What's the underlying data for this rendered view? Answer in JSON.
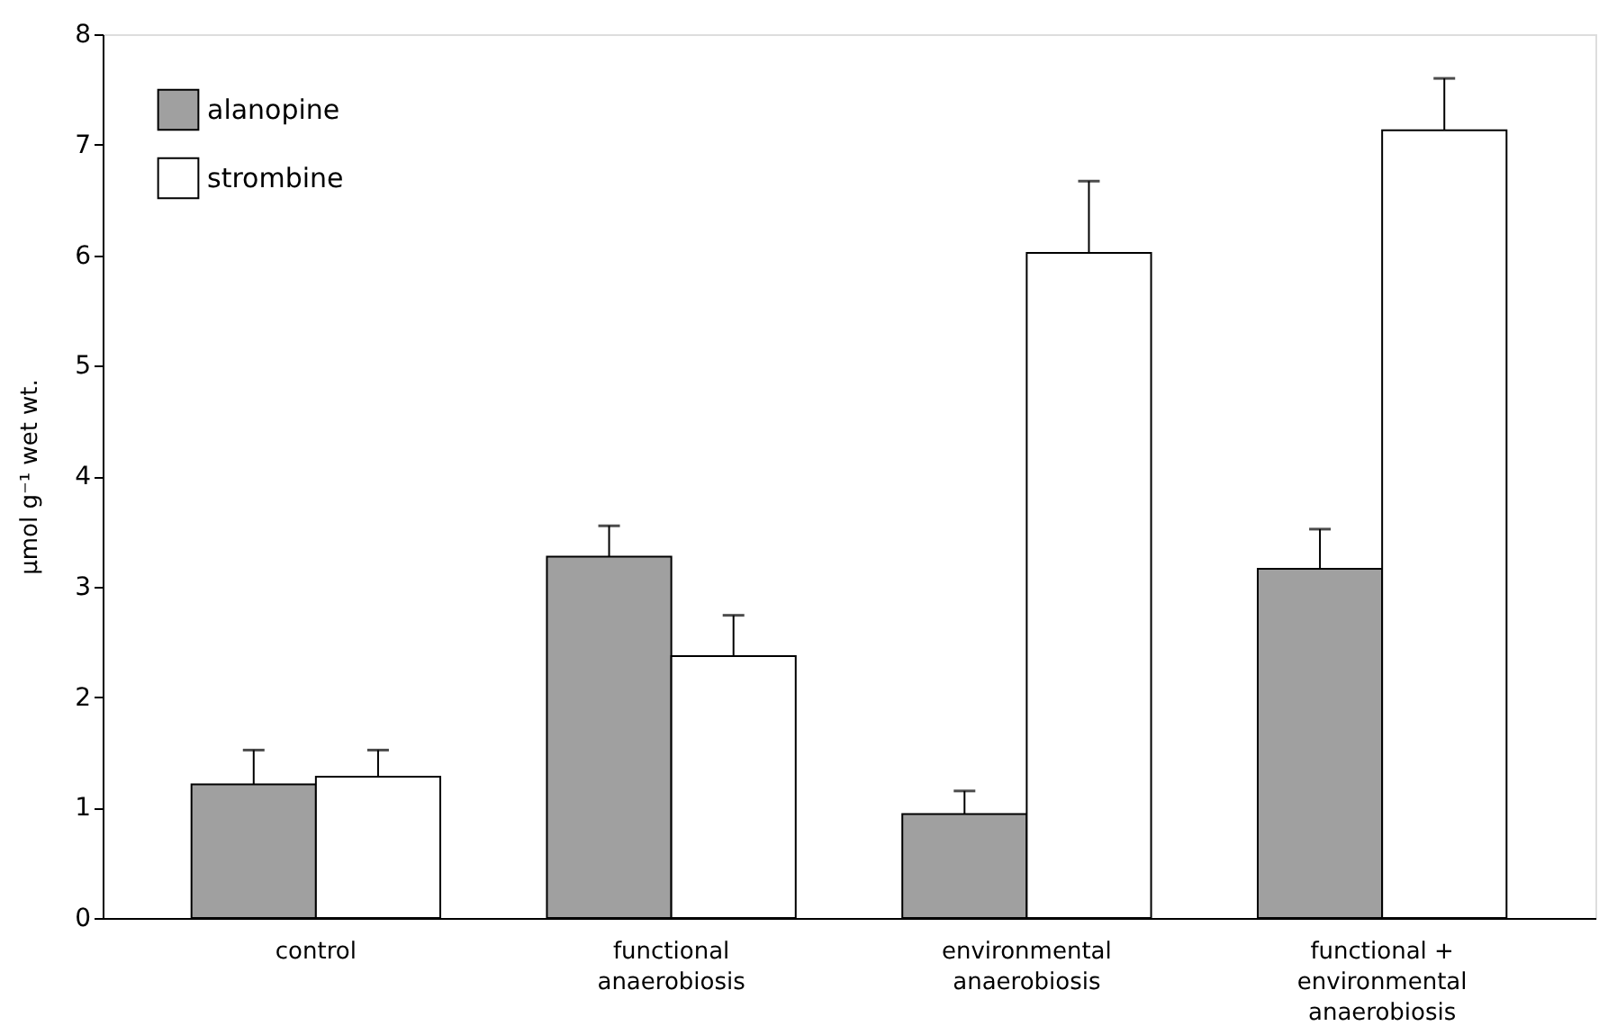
{
  "chart_data": {
    "type": "bar",
    "categories": [
      "control",
      "functional\nanaerobiosis",
      "environmental\nanaerobiosis",
      "functional +\nenvironmental\nanaerobiosis"
    ],
    "ylabel": "μmol g⁻¹ wet wt.",
    "series": [
      {
        "name": "alanopine",
        "color": "#a0a0a0",
        "values": [
          1.21,
          3.27,
          0.94,
          3.16
        ],
        "errors": [
          [
            1.21,
            1.52
          ],
          [
            3.27,
            3.55
          ],
          [
            0.94,
            1.15
          ],
          [
            3.16,
            3.52
          ]
        ]
      },
      {
        "name": "strombine",
        "color": "#ffffff",
        "values": [
          1.28,
          2.37,
          6.02,
          7.13
        ],
        "errors": [
          [
            1.28,
            1.52
          ],
          [
            2.37,
            2.74
          ],
          [
            6.02,
            6.67
          ],
          [
            7.13,
            7.6
          ]
        ]
      }
    ],
    "ylim": [
      0,
      8
    ],
    "yticks": [
      0,
      1,
      2,
      3,
      4,
      5,
      6,
      7,
      8
    ],
    "grid": false,
    "legend": "top left"
  }
}
